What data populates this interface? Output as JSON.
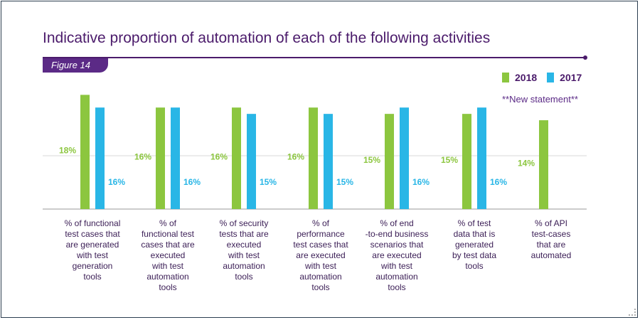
{
  "title": "Indicative proportion of automation of each of the following activities",
  "figure_tag": "Figure 14",
  "note": "**New statement**",
  "colors": {
    "y2018": "#8cc63f",
    "y2017": "#29b6e6",
    "label2018": "#8cc63f",
    "label2017": "#29b6e6"
  },
  "chart_data": {
    "type": "bar",
    "categories": [
      "% of functional test cases that are generated with test generation tools",
      "% of functional test cases that are executed with test automation tools",
      "% of security tests that are executed with test automation tools",
      "% of performance test cases that are executed with test automation tools",
      "% of end -to-end business scenarios that are executed with test automation tools",
      "% of test data that is generated by test data tools",
      "% of API test-cases that are automated"
    ],
    "category_lines": [
      [
        "% of functional",
        "test cases that",
        "are generated",
        "with test",
        "generation",
        "tools"
      ],
      [
        "% of",
        "functional test",
        "cases that are",
        "executed",
        "with test",
        "automation",
        "tools"
      ],
      [
        "% of security",
        "tests that are",
        "executed",
        "with test",
        "automation",
        "tools"
      ],
      [
        "% of",
        "performance",
        "test cases that",
        "are executed",
        "with test",
        "automation",
        "tools"
      ],
      [
        "% of end",
        "-to-end business",
        "scenarios that",
        "are executed",
        "with test",
        "automation",
        "tools"
      ],
      [
        "% of test",
        "data that is",
        "generated",
        "by test data",
        "tools"
      ],
      [
        "% of API",
        "test-cases",
        "that are",
        "automated"
      ]
    ],
    "series": [
      {
        "name": "2018",
        "values": [
          18,
          16,
          16,
          16,
          15,
          15,
          14
        ]
      },
      {
        "name": "2017",
        "values": [
          16,
          16,
          15,
          15,
          16,
          16,
          null
        ]
      }
    ],
    "value_labels": [
      [
        "18%",
        "16%",
        "16%",
        "16%",
        "15%",
        "15%",
        "14%"
      ],
      [
        "16%",
        "16%",
        "15%",
        "15%",
        "16%",
        "16%",
        ""
      ]
    ],
    "ylim": [
      0,
      19.5
    ],
    "grid": true,
    "legend": "top-right"
  }
}
